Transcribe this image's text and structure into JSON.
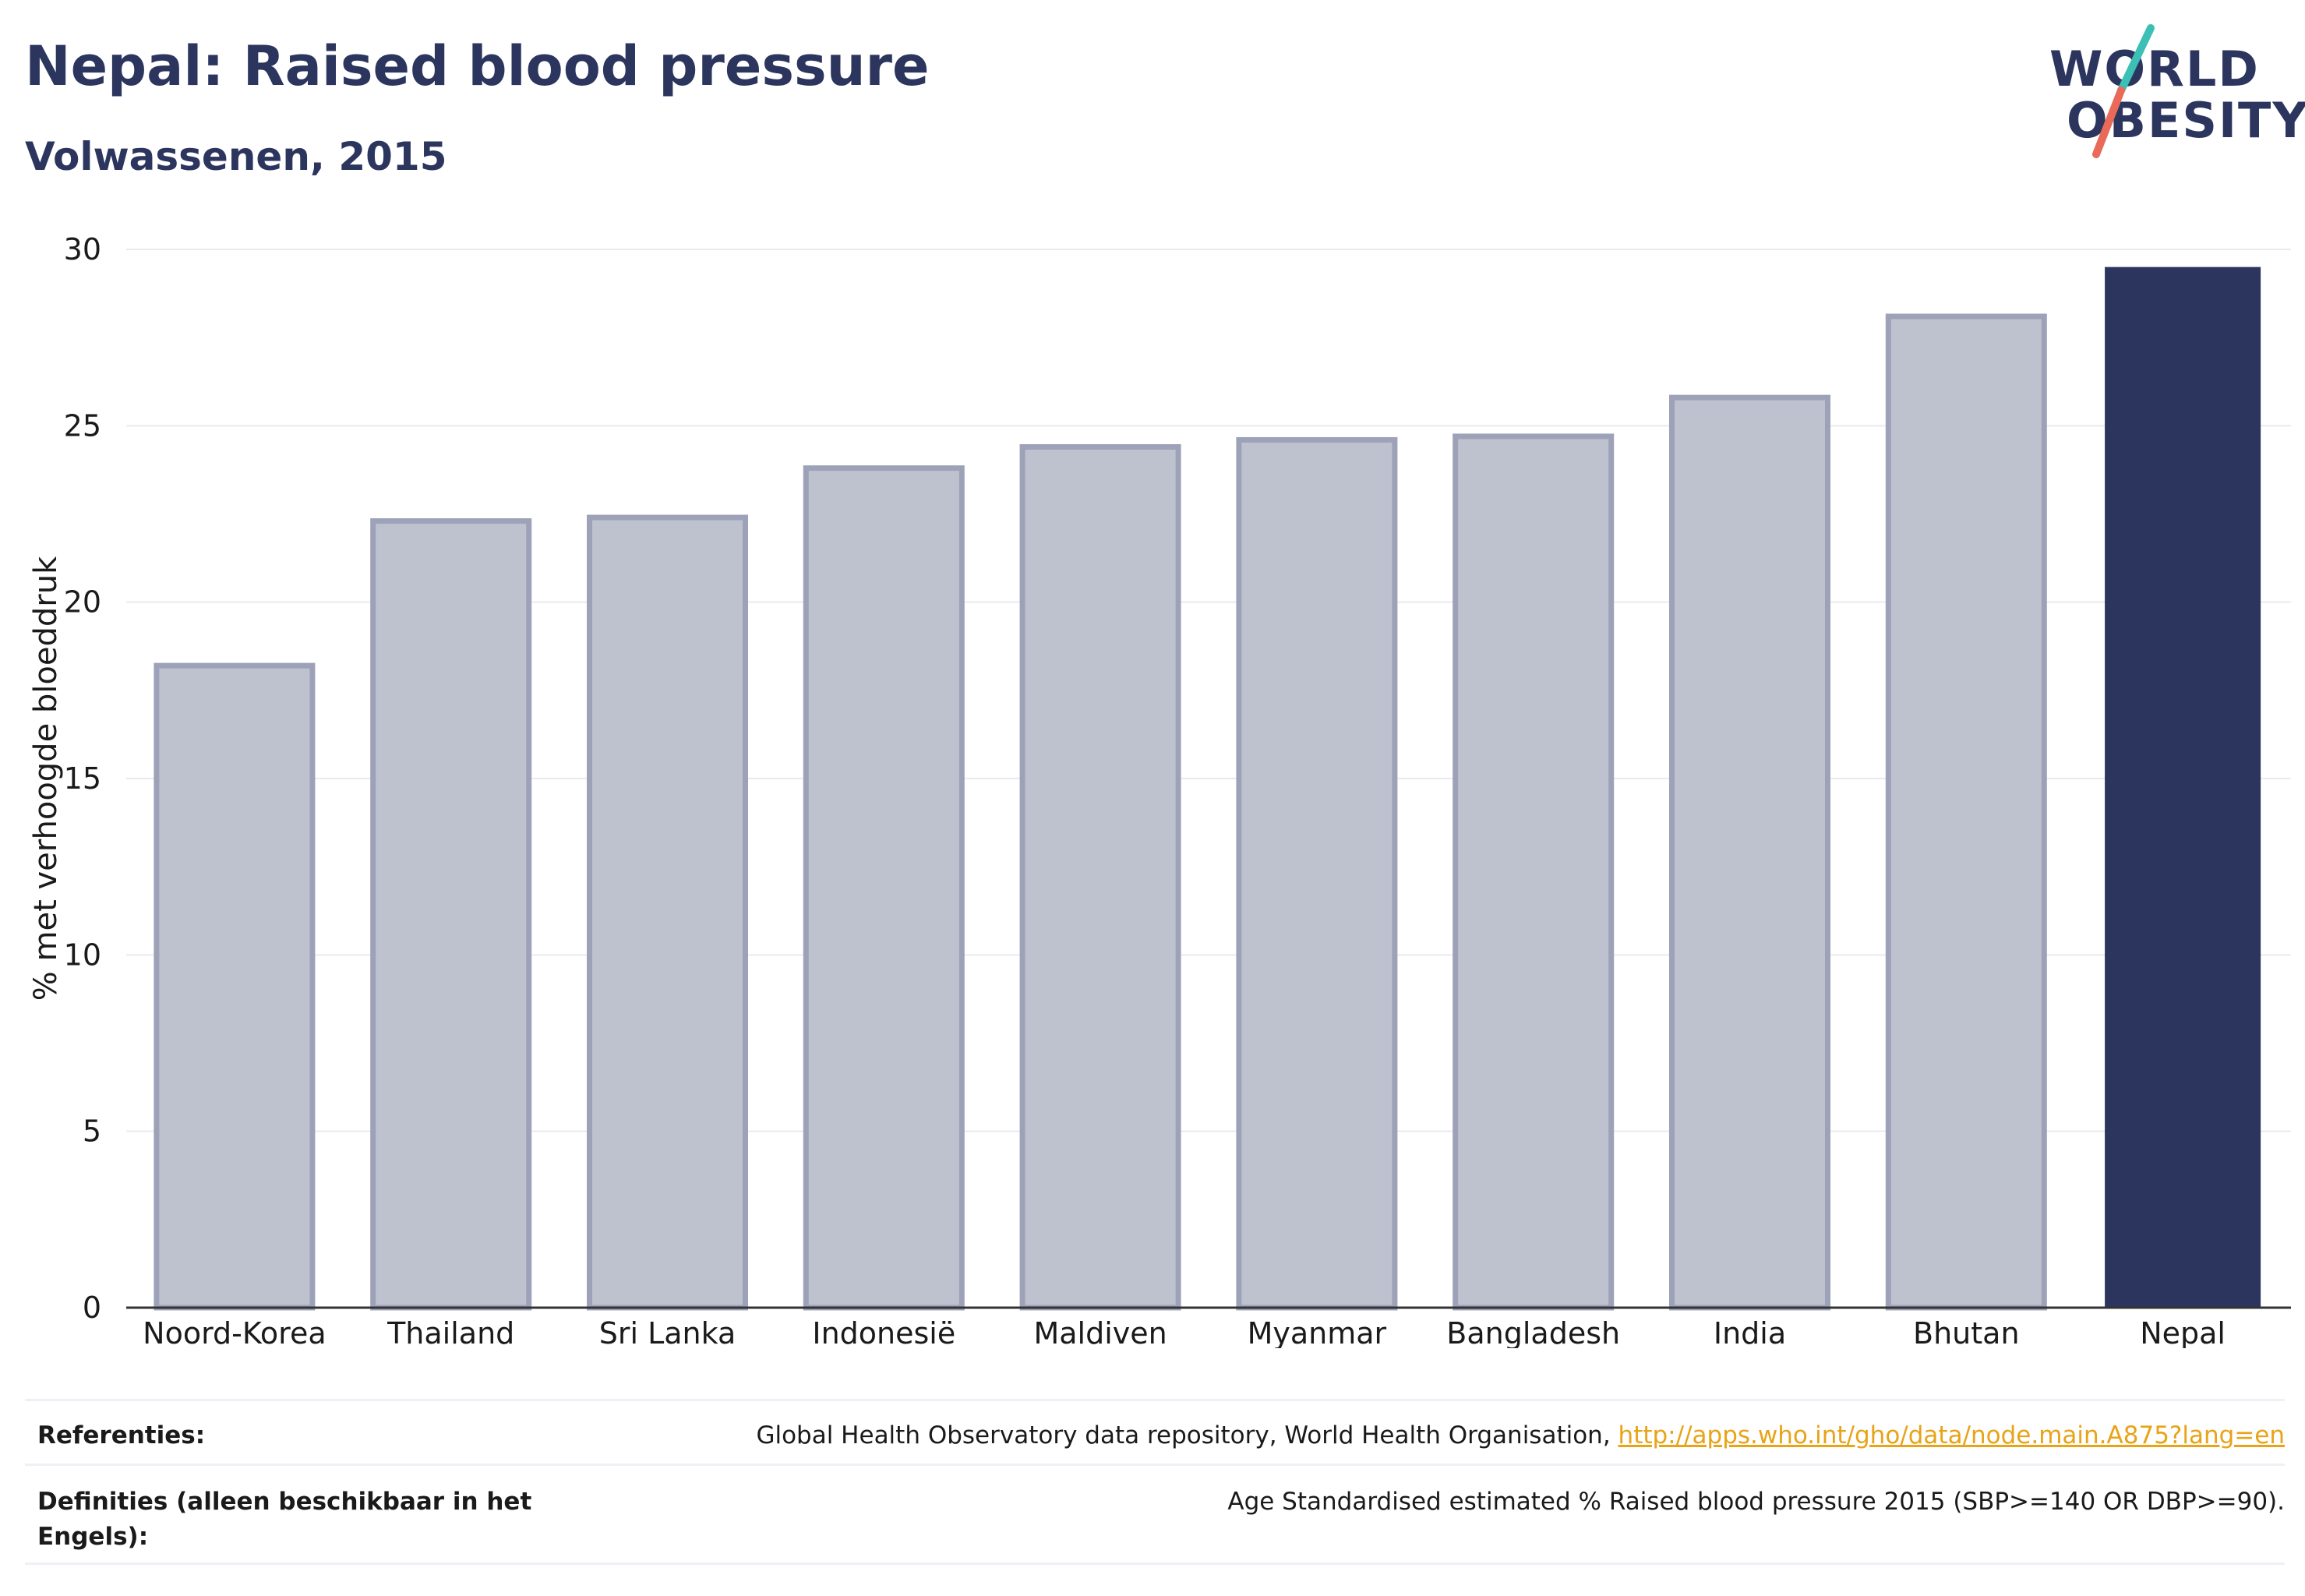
{
  "header": {
    "title": "Nepal: Raised blood pressure",
    "subtitle": "Volwassenen, 2015"
  },
  "logo": {
    "line1": "WORLD",
    "line2": "OBESITY",
    "accent_teal": "#3cbfb4",
    "accent_coral": "#e96a58"
  },
  "colors": {
    "highlight_bar": "#2b355e",
    "other_bar_fill": "#bec1ce",
    "other_bar_stroke": "#9da2b8",
    "grid": "#e9eaf0",
    "text": "#2b355e"
  },
  "chart_data": {
    "type": "bar",
    "categories": [
      "Noord-Korea",
      "Thailand",
      "Sri Lanka",
      "Indonesië",
      "Maldiven",
      "Myanmar",
      "Bangladesh",
      "India",
      "Bhutan",
      "Nepal"
    ],
    "values": [
      18.2,
      22.3,
      22.4,
      23.8,
      24.4,
      24.6,
      24.7,
      25.8,
      28.1,
      29.5
    ],
    "highlight": "Nepal",
    "xlabel": "",
    "ylabel": "% met verhoogde bloeddruk",
    "ylim": [
      0,
      30
    ],
    "yticks": [
      0,
      5,
      10,
      15,
      20,
      25,
      30
    ],
    "grid": true
  },
  "footer": {
    "references_label": "Referenties:",
    "references_text": "Global Health Observatory data repository, World Health Organisation, ",
    "references_link": "http://apps.who.int/gho/data/node.main.A875?lang=en",
    "definitions_label": "Definities (alleen beschikbaar in het Engels):",
    "definitions_text": "Age Standardised estimated % Raised blood pressure 2015 (SBP>=140 OR DBP>=90)."
  }
}
